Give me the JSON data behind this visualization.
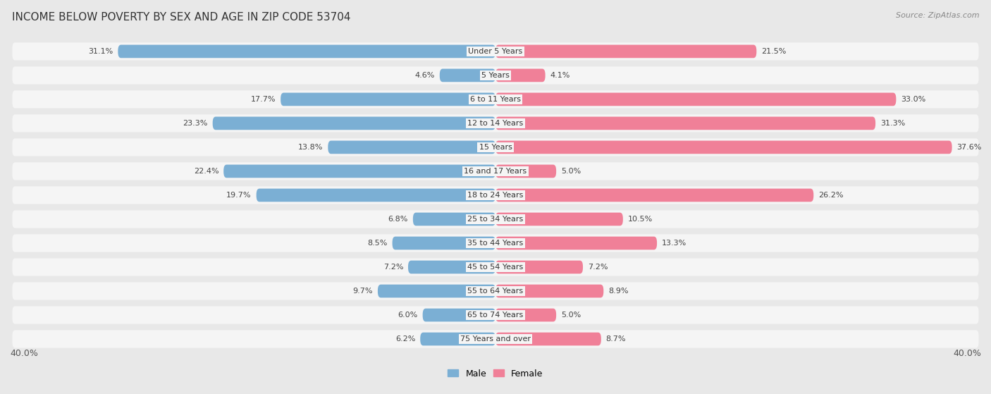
{
  "title": "INCOME BELOW POVERTY BY SEX AND AGE IN ZIP CODE 53704",
  "source": "Source: ZipAtlas.com",
  "categories": [
    "Under 5 Years",
    "5 Years",
    "6 to 11 Years",
    "12 to 14 Years",
    "15 Years",
    "16 and 17 Years",
    "18 to 24 Years",
    "25 to 34 Years",
    "35 to 44 Years",
    "45 to 54 Years",
    "55 to 64 Years",
    "65 to 74 Years",
    "75 Years and over"
  ],
  "male": [
    31.1,
    4.6,
    17.7,
    23.3,
    13.8,
    22.4,
    19.7,
    6.8,
    8.5,
    7.2,
    9.7,
    6.0,
    6.2
  ],
  "female": [
    21.5,
    4.1,
    33.0,
    31.3,
    37.6,
    5.0,
    26.2,
    10.5,
    13.3,
    7.2,
    8.9,
    5.0,
    8.7
  ],
  "male_color": "#7bafd4",
  "female_color": "#f08098",
  "male_color_light": "#a8cce0",
  "female_color_light": "#f4b8c8",
  "male_label": "Male",
  "female_label": "Female",
  "axis_limit": 40.0,
  "bg_color": "#e8e8e8",
  "row_bg_color": "#f5f5f5",
  "title_fontsize": 11,
  "source_fontsize": 8,
  "label_fontsize": 8,
  "axis_label_fontsize": 9,
  "cat_fontsize": 8
}
